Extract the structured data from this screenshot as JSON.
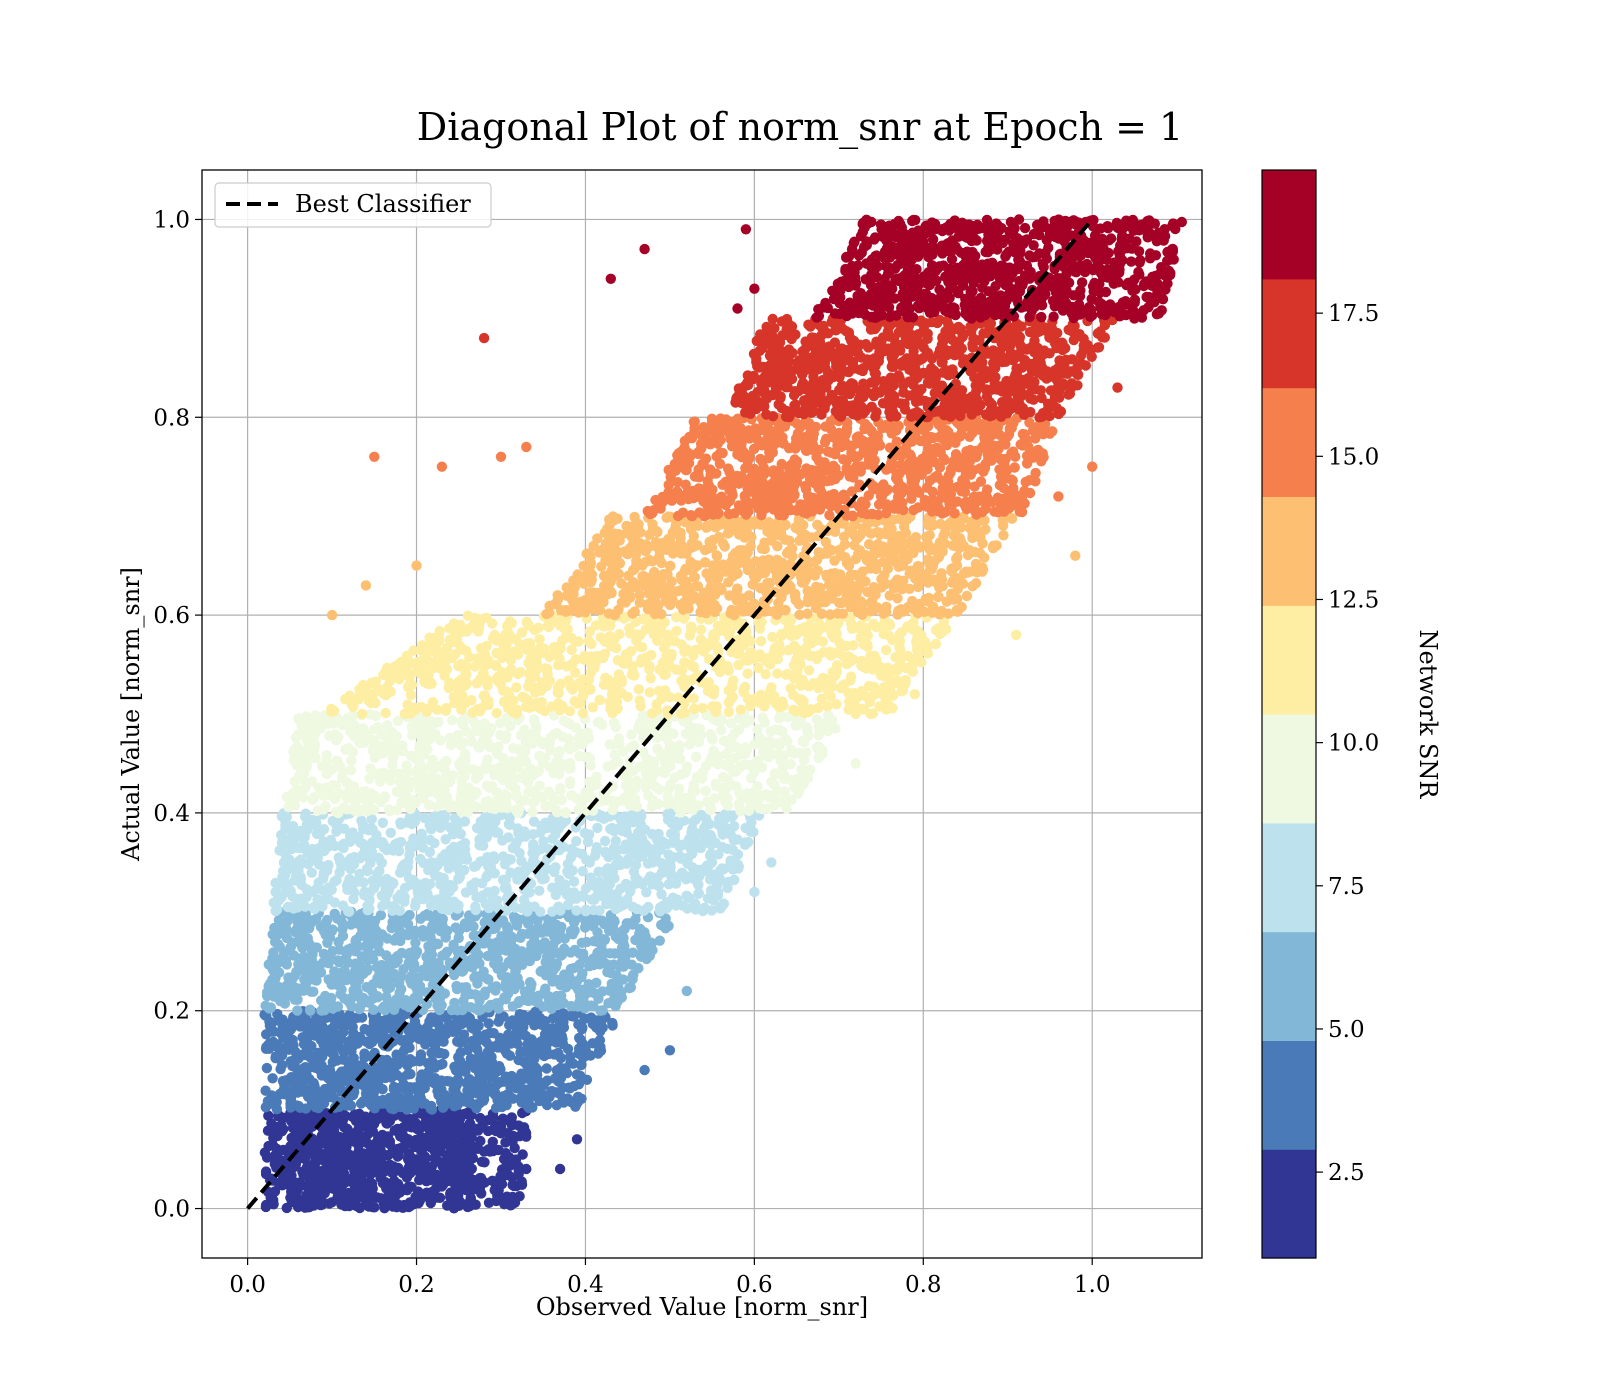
{
  "chart_data": {
    "type": "scatter",
    "title": "Diagonal Plot of norm_snr at Epoch = 1",
    "xlabel": "Observed Value [norm_snr]",
    "ylabel": "Actual Value [norm_snr]",
    "xlim": [
      -0.054,
      1.13
    ],
    "ylim": [
      -0.05,
      1.05
    ],
    "xticks": [
      "0.0",
      "0.2",
      "0.4",
      "0.6",
      "0.8",
      "1.0"
    ],
    "yticks": [
      "0.0",
      "0.2",
      "0.4",
      "0.6",
      "0.8",
      "1.0"
    ],
    "grid": true,
    "legend": {
      "position": "upper-left",
      "entries": [
        {
          "label": "Best Classifier",
          "style": "dashed",
          "color": "#000000"
        }
      ]
    },
    "reference_line": {
      "name": "Best Classifier",
      "x": [
        0.0,
        1.0
      ],
      "y": [
        0.0,
        1.0
      ]
    },
    "colorbar": {
      "label": "Network SNR",
      "range": [
        1.0,
        20.0
      ],
      "ticks": [
        "2.5",
        "5.0",
        "7.5",
        "10.0",
        "12.5",
        "15.0",
        "17.5"
      ],
      "colors": [
        "#313695",
        "#4a7ab7",
        "#82b7d8",
        "#bde2ee",
        "#eff8e1",
        "#feeea3",
        "#fdbf71",
        "#f5804d",
        "#d73529",
        "#a50026"
      ]
    },
    "bands": [
      {
        "snr_range": [
          1.0,
          2.9
        ],
        "y_range": [
          0.0,
          0.1
        ],
        "x_core_at_y": [
          [
            0.0,
            0.05,
            0.27
          ],
          [
            0.1,
            0.05,
            0.27
          ]
        ],
        "color": "#313695"
      },
      {
        "snr_range": [
          2.9,
          4.8
        ],
        "y_range": [
          0.1,
          0.2
        ],
        "x_core_at_y": [
          [
            0.1,
            0.05,
            0.33
          ],
          [
            0.2,
            0.05,
            0.38
          ]
        ],
        "color": "#4a7ab7"
      },
      {
        "snr_range": [
          4.8,
          6.7
        ],
        "y_range": [
          0.2,
          0.3
        ],
        "x_core_at_y": [
          [
            0.2,
            0.05,
            0.38
          ],
          [
            0.3,
            0.06,
            0.45
          ]
        ],
        "color": "#82b7d8"
      },
      {
        "snr_range": [
          6.7,
          8.6
        ],
        "y_range": [
          0.3,
          0.4
        ],
        "x_core_at_y": [
          [
            0.3,
            0.06,
            0.5
          ],
          [
            0.4,
            0.07,
            0.55
          ]
        ],
        "color": "#bde2ee"
      },
      {
        "snr_range": [
          8.6,
          10.5
        ],
        "y_range": [
          0.4,
          0.5
        ],
        "x_core_at_y": [
          [
            0.4,
            0.07,
            0.58
          ],
          [
            0.5,
            0.09,
            0.65
          ]
        ],
        "color": "#eff8e1"
      },
      {
        "snr_range": [
          10.5,
          12.4
        ],
        "y_range": [
          0.5,
          0.6
        ],
        "x_core_at_y": [
          [
            0.5,
            0.12,
            0.7
          ],
          [
            0.6,
            0.28,
            0.78
          ]
        ],
        "color": "#feeea3"
      },
      {
        "snr_range": [
          12.4,
          14.3
        ],
        "y_range": [
          0.6,
          0.7
        ],
        "x_core_at_y": [
          [
            0.6,
            0.38,
            0.78
          ],
          [
            0.7,
            0.46,
            0.85
          ]
        ],
        "color": "#fdbf71"
      },
      {
        "snr_range": [
          14.3,
          16.2
        ],
        "y_range": [
          0.7,
          0.8
        ],
        "x_core_at_y": [
          [
            0.7,
            0.5,
            0.86
          ],
          [
            0.8,
            0.56,
            0.9
          ]
        ],
        "color": "#f5804d"
      },
      {
        "snr_range": [
          16.2,
          18.1
        ],
        "y_range": [
          0.8,
          0.9
        ],
        "x_core_at_y": [
          [
            0.8,
            0.6,
            0.9
          ],
          [
            0.9,
            0.64,
            0.97
          ]
        ],
        "color": "#d73529"
      },
      {
        "snr_range": [
          18.1,
          20.0
        ],
        "y_range": [
          0.9,
          1.0
        ],
        "x_core_at_y": [
          [
            0.9,
            0.7,
            1.02
          ],
          [
            1.0,
            0.76,
            1.05
          ]
        ],
        "color": "#a50026"
      }
    ],
    "outliers": [
      [
        0.28,
        0.88
      ],
      [
        0.43,
        0.94
      ],
      [
        0.47,
        0.97
      ],
      [
        0.58,
        0.91
      ],
      [
        0.59,
        0.99
      ],
      [
        0.6,
        0.93
      ],
      [
        0.15,
        0.76
      ],
      [
        0.23,
        0.75
      ],
      [
        0.3,
        0.76
      ],
      [
        0.33,
        0.77
      ],
      [
        0.96,
        0.72
      ],
      [
        1.05,
        0.9
      ],
      [
        0.1,
        0.6
      ],
      [
        0.14,
        0.63
      ],
      [
        0.2,
        0.65
      ],
      [
        0.79,
        0.52
      ],
      [
        0.72,
        0.45
      ],
      [
        0.72,
        0.5
      ],
      [
        0.62,
        0.35
      ],
      [
        0.6,
        0.32
      ],
      [
        0.52,
        0.22
      ],
      [
        0.47,
        0.14
      ],
      [
        0.37,
        0.04
      ],
      [
        0.33,
        0.04
      ],
      [
        0.39,
        0.07
      ],
      [
        1.03,
        0.83
      ],
      [
        1.0,
        0.75
      ],
      [
        0.98,
        0.66
      ],
      [
        0.91,
        0.58
      ],
      [
        0.5,
        0.16
      ]
    ]
  }
}
